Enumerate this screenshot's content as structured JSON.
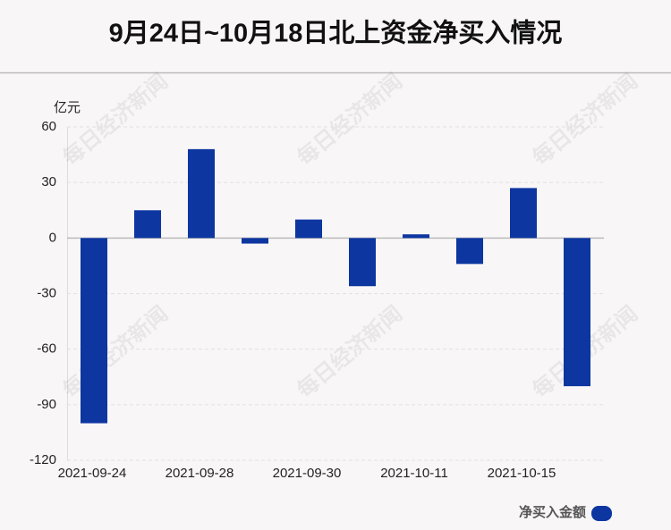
{
  "chart_data": {
    "type": "bar",
    "title": "9月24日~10月18日北上资金净买入情况",
    "y_unit": "亿元",
    "watermark": "每日经济新闻",
    "categories": [
      "2021-09-24",
      null,
      "2021-09-28",
      null,
      "2021-09-30",
      null,
      "2021-10-11",
      null,
      "2021-10-15",
      null
    ],
    "series": [
      {
        "name": "净买入金额",
        "color": "#0d36a0",
        "values": [
          -100,
          15,
          48,
          -3,
          10,
          -26,
          2,
          -14,
          27,
          -80
        ]
      }
    ],
    "ylim": [
      -120,
      60
    ],
    "yticks": [
      -120,
      -90,
      -60,
      -30,
      0,
      30,
      60
    ],
    "grid": true,
    "legend": "bottom-right"
  }
}
